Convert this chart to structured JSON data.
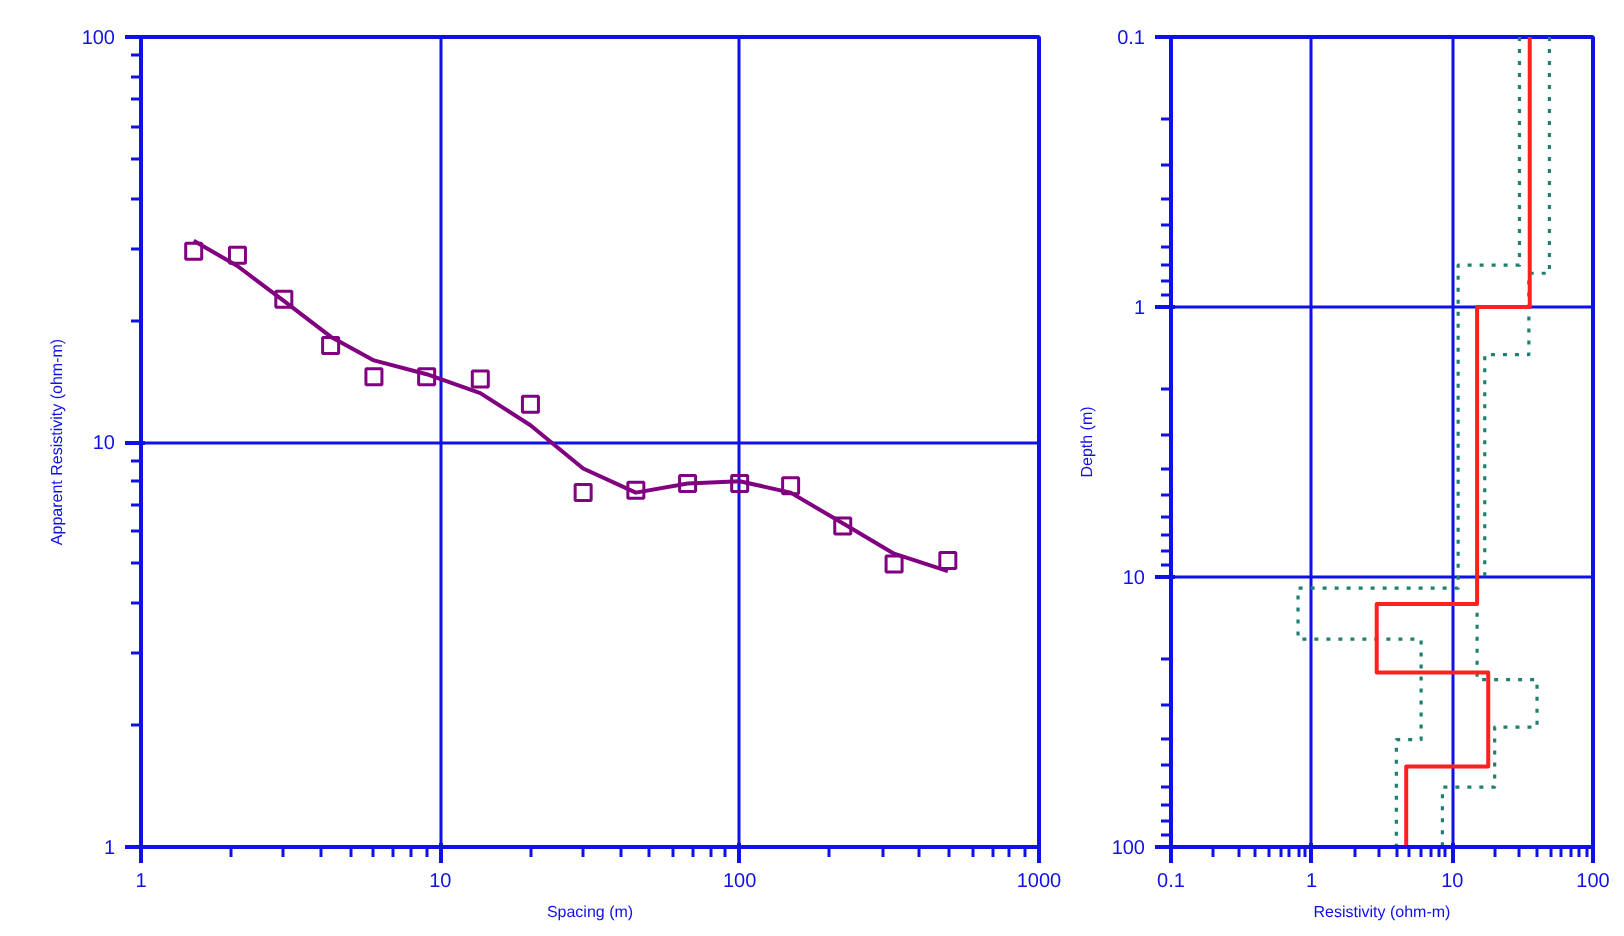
{
  "chart_data": [
    {
      "type": "scatter",
      "xlabel": "Spacing (m)",
      "ylabel": "Apparent Resistivity (ohm-m)",
      "log": "xy",
      "grid": true,
      "xlim": [
        1,
        1000
      ],
      "ylim": [
        1,
        100
      ],
      "xticks": [
        1,
        {
          "value": 2,
          "label": null
        },
        {
          "value": 3,
          "label": null
        },
        {
          "value": 4,
          "label": null
        },
        {
          "value": 5,
          "label": null
        },
        {
          "value": 6,
          "label": null
        },
        {
          "value": 7,
          "label": null
        },
        {
          "value": 8,
          "label": null
        },
        {
          "value": 9,
          "label": null
        },
        10,
        {
          "value": 20,
          "label": null
        },
        {
          "value": 30,
          "label": null
        },
        {
          "value": 40,
          "label": null
        },
        {
          "value": 50,
          "label": null
        },
        {
          "value": 60,
          "label": null
        },
        {
          "value": 70,
          "label": null
        },
        {
          "value": 80,
          "label": null
        },
        {
          "value": 90,
          "label": null
        },
        100,
        {
          "value": 200,
          "label": null
        },
        {
          "value": 300,
          "label": null
        },
        {
          "value": 400,
          "label": null
        },
        {
          "value": 500,
          "label": null
        },
        {
          "value": 600,
          "label": null
        },
        {
          "value": 700,
          "label": null
        },
        {
          "value": 800,
          "label": null
        },
        {
          "value": 900,
          "label": null
        },
        1000
      ],
      "yticks": [
        1,
        {
          "value": 2,
          "label": null
        },
        {
          "value": 3,
          "label": null
        },
        {
          "value": 4,
          "label": null
        },
        {
          "value": 5,
          "label": null
        },
        {
          "value": 6,
          "label": null
        },
        {
          "value": 7,
          "label": null
        },
        {
          "value": 8,
          "label": null
        },
        {
          "value": 9,
          "label": null
        },
        10,
        {
          "value": 20,
          "label": null
        },
        {
          "value": 30,
          "label": null
        },
        {
          "value": 40,
          "label": null
        },
        {
          "value": 50,
          "label": null
        },
        {
          "value": 60,
          "label": null
        },
        {
          "value": 70,
          "label": null
        },
        {
          "value": 80,
          "label": null
        },
        {
          "value": 90,
          "label": null
        },
        100
      ],
      "series": [
        {
          "marker": "square",
          "color": "#800080",
          "x": [
            1.5,
            2.1,
            3,
            4.3,
            6,
            9,
            13.6,
            20,
            30,
            45,
            67,
            100,
            148,
            221,
            328,
            496
          ],
          "values": [
            29.6,
            28.9,
            22.5,
            17.3,
            14.5,
            14.5,
            14.3,
            12.4,
            7.5,
            7.6,
            7.9,
            7.9,
            7.8,
            6.2,
            5.0,
            5.1
          ]
        },
        {
          "type": "line",
          "marker": "none",
          "line_style": "solid",
          "color": "#800080",
          "x": [
            1.5,
            2.1,
            3,
            4.3,
            6,
            9,
            13.6,
            20,
            30,
            45,
            67,
            100,
            148,
            221,
            328,
            496
          ],
          "values": [
            31.4,
            27.2,
            22.3,
            18.2,
            15.9,
            14.7,
            13.2,
            11.0,
            8.6,
            7.5,
            7.9,
            8.0,
            7.5,
            6.3,
            5.3,
            4.8
          ]
        }
      ]
    },
    {
      "type": "line",
      "xlabel": "Resistivity (ohm-m)",
      "ylabel": "Depth (m)",
      "log": "xy",
      "grid": true,
      "xlim": [
        0.1,
        100
      ],
      "ylim": [
        100,
        0.1
      ],
      "xticks": [
        0.1,
        {
          "value": 0.2,
          "label": null
        },
        {
          "value": 0.3,
          "label": null
        },
        {
          "value": 0.4,
          "label": null
        },
        {
          "value": 0.5,
          "label": null
        },
        {
          "value": 0.6,
          "label": null
        },
        {
          "value": 0.7,
          "label": null
        },
        {
          "value": 0.8,
          "label": null
        },
        {
          "value": 0.9,
          "label": null
        },
        1,
        {
          "value": 2,
          "label": null
        },
        {
          "value": 3,
          "label": null
        },
        {
          "value": 4,
          "label": null
        },
        {
          "value": 5,
          "label": null
        },
        {
          "value": 6,
          "label": null
        },
        {
          "value": 7,
          "label": null
        },
        {
          "value": 8,
          "label": null
        },
        {
          "value": 9,
          "label": null
        },
        10,
        {
          "value": 20,
          "label": null
        },
        {
          "value": 30,
          "label": null
        },
        {
          "value": 40,
          "label": null
        },
        {
          "value": 50,
          "label": null
        },
        {
          "value": 60,
          "label": null
        },
        {
          "value": 70,
          "label": null
        },
        {
          "value": 80,
          "label": null
        },
        {
          "value": 90,
          "label": null
        },
        100
      ],
      "yticks": [
        0.1,
        {
          "value": 0.2,
          "label": null
        },
        {
          "value": 0.3,
          "label": null
        },
        {
          "value": 0.4,
          "label": null
        },
        {
          "value": 0.5,
          "label": null
        },
        {
          "value": 0.6,
          "label": null
        },
        {
          "value": 0.7,
          "label": null
        },
        {
          "value": 0.8,
          "label": null
        },
        {
          "value": 0.9,
          "label": null
        },
        1,
        {
          "value": 2,
          "label": null
        },
        {
          "value": 3,
          "label": null
        },
        {
          "value": 4,
          "label": null
        },
        {
          "value": 5,
          "label": null
        },
        {
          "value": 6,
          "label": null
        },
        {
          "value": 7,
          "label": null
        },
        {
          "value": 8,
          "label": null
        },
        {
          "value": 9,
          "label": null
        },
        10,
        {
          "value": 20,
          "label": null
        },
        {
          "value": 30,
          "label": null
        },
        {
          "value": 40,
          "label": null
        },
        {
          "value": 50,
          "label": null
        },
        {
          "value": 60,
          "label": null
        },
        {
          "value": 70,
          "label": null
        },
        {
          "value": 80,
          "label": null
        },
        {
          "value": 90,
          "label": null
        },
        100
      ],
      "series": [
        {
          "marker": "none",
          "line_style": "dotted",
          "color": "#1f7f70",
          "x": [
            30,
            30,
            11,
            11,
            0.8,
            0.8,
            6,
            6,
            4,
            4
          ],
          "values": [
            0.1,
            0.7,
            0.7,
            11,
            11,
            17,
            17,
            40,
            40,
            100
          ]
        },
        {
          "marker": "none",
          "line_style": "dotted",
          "color": "#1f7f70",
          "x": [
            49,
            49,
            35,
            35,
            17,
            17,
            15,
            15,
            40,
            40,
            20,
            20,
            8.5,
            8.5
          ],
          "values": [
            0.1,
            0.75,
            0.75,
            1.5,
            1.5,
            10,
            10,
            24,
            24,
            36,
            36,
            60,
            60,
            100
          ]
        },
        {
          "marker": "none",
          "line_style": "solid",
          "color": "#ff2020",
          "x": [
            35.5,
            35.5,
            15,
            15,
            2.9,
            2.9,
            18,
            18,
            4.7,
            4.7
          ],
          "values": [
            0.1,
            1,
            1,
            12.6,
            12.6,
            22.6,
            22.6,
            50.3,
            50.3,
            100
          ]
        }
      ]
    }
  ]
}
